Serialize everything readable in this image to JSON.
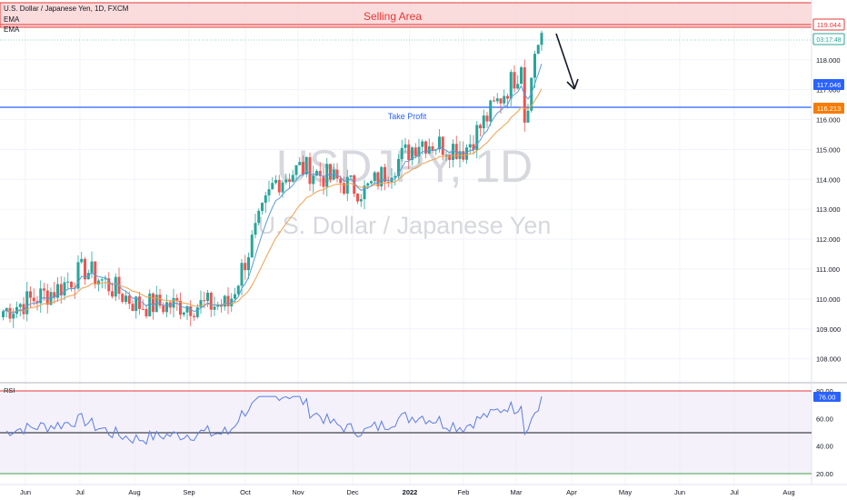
{
  "header": {
    "symbol_line": "U.S. Dollar / Japanese Yen, 1D, FXCM",
    "indicator_1": "EMA",
    "indicator_2": "EMA"
  },
  "watermark": {
    "symbol": "USDJPY, 1D",
    "name": "U.S. Dollar / Japanese Yen"
  },
  "annotations": {
    "selling_area": "Selling Area",
    "take_profit": "Take Profit"
  },
  "price_badges": {
    "selling_top": "119.044",
    "countdown": "03:17:48",
    "ema_value": "117.046",
    "take_profit_value": "116.213"
  },
  "rsi_panel": {
    "label": "RSI",
    "value_badge": "76.00"
  },
  "colors": {
    "up": "#26a69a",
    "down": "#ef5350",
    "ema_fast": "#5b9bd5",
    "ema_slow": "#f0a04b",
    "take_profit_line": "#2962ff",
    "selling_area_fill": "#f9d3d5",
    "selling_area_border": "#e53935",
    "rsi_line": "#5c7ee0",
    "rsi_band": "#ede7f6"
  },
  "chart_data": [
    {
      "type": "candlestick",
      "title": "U.S. Dollar / Japanese Yen, 1D, FXCM",
      "x_tick_labels": [
        "Jun",
        "Jul",
        "Aug",
        "Sep",
        "Oct",
        "Nov",
        "Dec",
        "2022",
        "Feb",
        "Mar",
        "Apr",
        "May",
        "Jun",
        "Jul",
        "Aug"
      ],
      "y_tick_labels": [
        "108.000",
        "109.000",
        "110.000",
        "111.000",
        "112.000",
        "113.000",
        "114.000",
        "115.000",
        "116.000",
        "117.000",
        "118.000"
      ],
      "ylim": [
        107.2,
        120.0
      ],
      "levels": [
        {
          "name": "Take Profit",
          "value": 116.213
        },
        {
          "name": "Selling Area",
          "from": 119.044,
          "to": 119.7
        }
      ],
      "series": [
        {
          "kind": "close",
          "monthly_path": [
            {
              "month": "Jun",
              "value": 109.6
            },
            {
              "month": "Jul",
              "value": 110.3
            },
            {
              "month": "Jul",
              "value": 111.0
            },
            {
              "month": "Aug",
              "value": 109.8
            },
            {
              "month": "Sep",
              "value": 109.8
            },
            {
              "month": "Oct",
              "value": 113.9
            },
            {
              "month": "Nov",
              "value": 114.4
            },
            {
              "month": "Dec",
              "value": 113.6
            },
            {
              "month": "2022",
              "value": 115.3
            },
            {
              "month": "Feb",
              "value": 115.0
            },
            {
              "month": "Mar",
              "value": 118.9
            }
          ]
        }
      ]
    },
    {
      "type": "line",
      "title": "RSI",
      "ylim": [
        15,
        85
      ],
      "y_tick_labels": [
        "20.00",
        "40.00",
        "60.00",
        "80.00"
      ],
      "reference_lines": [
        80,
        50,
        20
      ],
      "last_value": 76.0
    }
  ]
}
